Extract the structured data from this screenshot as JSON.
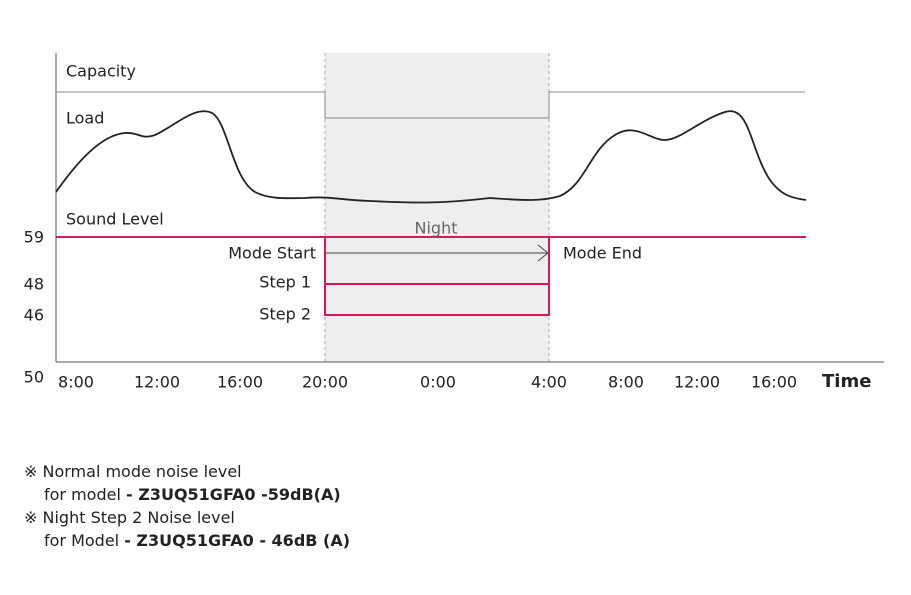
{
  "diagram": {
    "curve_labels": {
      "capacity": "Capacity",
      "load": "Load",
      "sound_level": "Sound Level"
    },
    "y_labels": [
      "59",
      "48",
      "46",
      "50"
    ],
    "x_labels": [
      "8:00",
      "12:00",
      "16:00",
      "20:00",
      "0:00",
      "4:00",
      "8:00",
      "12:00",
      "16:00"
    ],
    "x_axis_label": "Time",
    "night_label": "Night",
    "mode_start": "Mode Start",
    "mode_end": "Mode End",
    "steps": [
      "Step 1",
      "Step 2"
    ]
  },
  "notes": [
    {
      "text": "※ Normal mode noise level"
    },
    {
      "text": "for model ",
      "bold": "- Z3UQ51GFA0 -59dB(A)"
    },
    {
      "text": "※ Night Step 2 Noise level"
    },
    {
      "text": "for Model ",
      "bold": "- Z3UQ51GFA0 - 46dB (A)"
    }
  ]
}
